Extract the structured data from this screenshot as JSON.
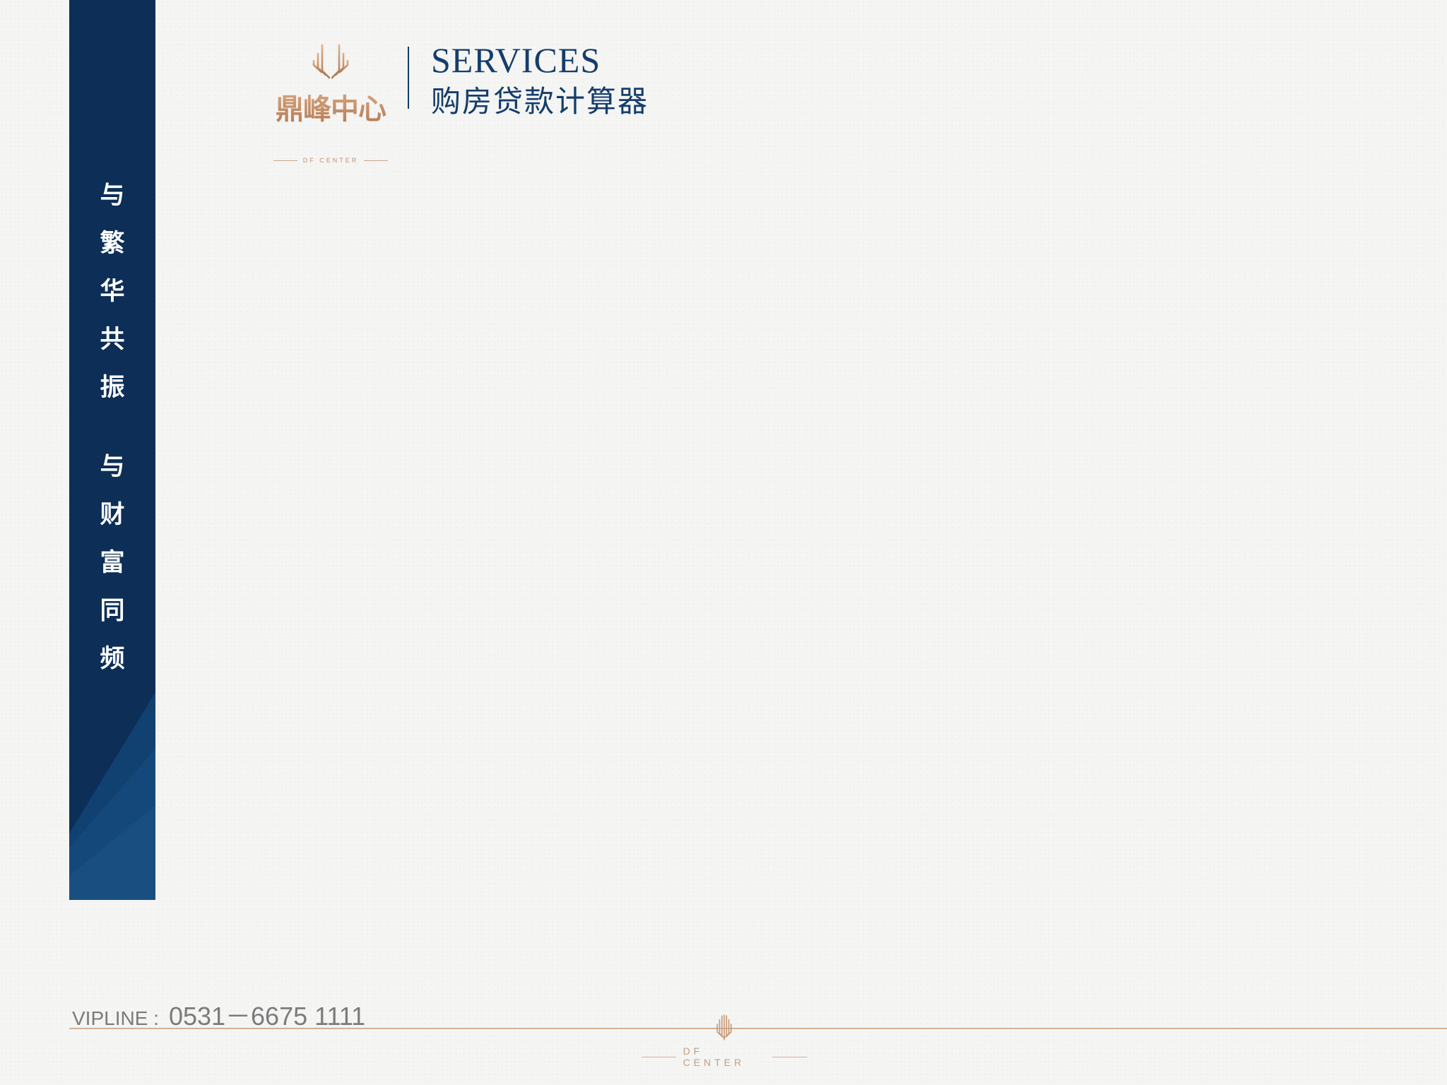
{
  "sidebar": {
    "slogan_line1": [
      "与",
      "繁",
      "华",
      "共",
      "振"
    ],
    "slogan_line2": [
      "与",
      "财",
      "富",
      "同",
      "频"
    ]
  },
  "logo": {
    "cn_name": "鼎峰中心",
    "en_name": "DF CENTER"
  },
  "header": {
    "title_en": "SERVICES",
    "title_cn": "购房贷款计算器"
  },
  "footer": {
    "vipline_label": "VIPLINE :",
    "vipline_number": "0531－6675 1111",
    "brand_en": "DF CENTER"
  },
  "colors": {
    "navy": "#0c2e57",
    "gold": "#c8926a",
    "title_blue": "#143d6b"
  }
}
